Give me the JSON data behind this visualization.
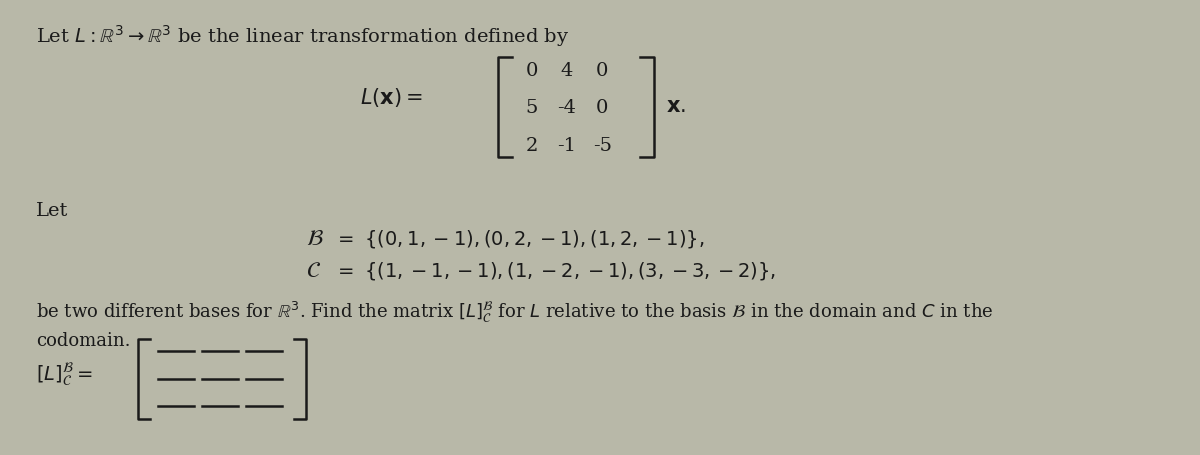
{
  "bg_color": "#b8b8a8",
  "text_color": "#1a1a1a",
  "matrix_rows": [
    [
      "0",
      "4",
      "0"
    ],
    [
      "5",
      "-4",
      "0"
    ],
    [
      "2",
      "-1",
      "-5"
    ]
  ],
  "answer_rows": 3,
  "answer_cols": 3
}
